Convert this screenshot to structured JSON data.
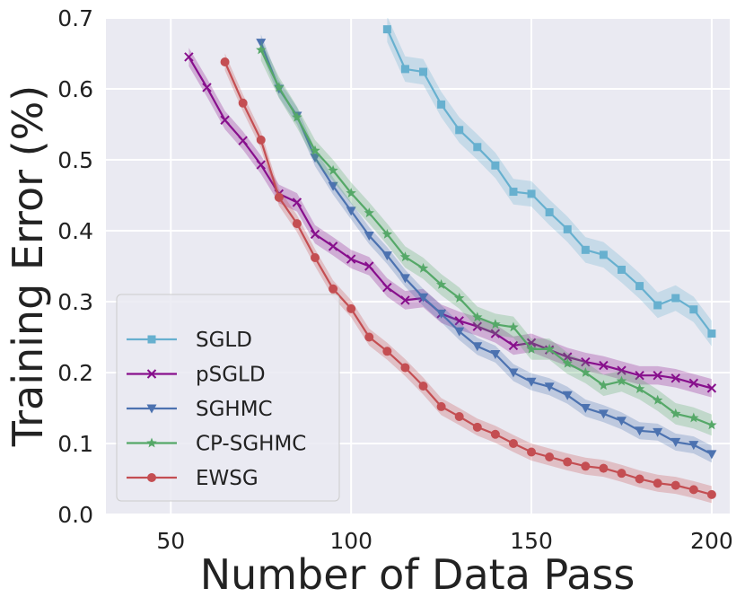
{
  "chart_data": {
    "type": "line",
    "xlabel": "Number of Data Pass",
    "ylabel": "Training Error (%)",
    "xlim": [
      32,
      205
    ],
    "ylim": [
      0.0,
      0.7
    ],
    "xticks": [
      50,
      100,
      150,
      200
    ],
    "yticks": [
      0.0,
      0.1,
      0.2,
      0.3,
      0.4,
      0.5,
      0.6,
      0.7
    ],
    "xtick_labels": [
      "50",
      "100",
      "150",
      "200"
    ],
    "ytick_labels": [
      "0.0",
      "0.1",
      "0.2",
      "0.3",
      "0.4",
      "0.5",
      "0.6",
      "0.7"
    ],
    "grid": true,
    "legend_position": "lower-left",
    "series": [
      {
        "name": "SGLD",
        "color": "#67b0cf",
        "marker": "square",
        "x": [
          110,
          115,
          120,
          125,
          130,
          135,
          140,
          145,
          150,
          155,
          160,
          165,
          170,
          175,
          180,
          185,
          190,
          195,
          200
        ],
        "y": [
          0.684,
          0.628,
          0.624,
          0.578,
          0.542,
          0.518,
          0.492,
          0.455,
          0.452,
          0.426,
          0.402,
          0.373,
          0.366,
          0.345,
          0.322,
          0.295,
          0.305,
          0.289,
          0.255
        ],
        "band": 0.018
      },
      {
        "name": "pSGLD",
        "color": "#870f8c",
        "marker": "x",
        "x": [
          55,
          60,
          65,
          70,
          75,
          80,
          85,
          90,
          95,
          100,
          105,
          110,
          115,
          120,
          125,
          130,
          135,
          140,
          145,
          150,
          155,
          160,
          165,
          170,
          175,
          180,
          185,
          190,
          195,
          200
        ],
        "y": [
          0.645,
          0.602,
          0.556,
          0.527,
          0.493,
          0.452,
          0.44,
          0.395,
          0.378,
          0.36,
          0.35,
          0.32,
          0.302,
          0.305,
          0.283,
          0.273,
          0.265,
          0.255,
          0.238,
          0.242,
          0.232,
          0.222,
          0.215,
          0.21,
          0.203,
          0.196,
          0.196,
          0.192,
          0.185,
          0.178
        ],
        "band": 0.013
      },
      {
        "name": "SGHMC",
        "color": "#4c72b0",
        "marker": "triangle-down",
        "x": [
          75,
          80,
          85,
          90,
          95,
          100,
          105,
          110,
          115,
          120,
          125,
          130,
          135,
          140,
          145,
          150,
          155,
          160,
          165,
          170,
          175,
          180,
          185,
          190,
          195,
          200
        ],
        "y": [
          0.665,
          0.6,
          0.562,
          0.503,
          0.463,
          0.428,
          0.393,
          0.365,
          0.333,
          0.306,
          0.283,
          0.258,
          0.237,
          0.226,
          0.2,
          0.187,
          0.18,
          0.168,
          0.15,
          0.142,
          0.132,
          0.118,
          0.116,
          0.102,
          0.098,
          0.085
        ],
        "band": 0.012
      },
      {
        "name": "CP-SGHMC",
        "color": "#55a868",
        "marker": "star",
        "x": [
          75,
          80,
          85,
          90,
          95,
          100,
          105,
          110,
          115,
          120,
          125,
          130,
          135,
          140,
          145,
          150,
          155,
          160,
          165,
          170,
          175,
          180,
          185,
          190,
          195,
          200
        ],
        "y": [
          0.655,
          0.602,
          0.56,
          0.513,
          0.485,
          0.453,
          0.425,
          0.395,
          0.363,
          0.347,
          0.324,
          0.305,
          0.278,
          0.268,
          0.264,
          0.233,
          0.233,
          0.213,
          0.2,
          0.182,
          0.188,
          0.177,
          0.161,
          0.142,
          0.136,
          0.126
        ],
        "band": 0.015
      },
      {
        "name": "EWSG",
        "color": "#c44e52",
        "marker": "circle",
        "x": [
          65,
          70,
          75,
          80,
          85,
          90,
          95,
          100,
          105,
          110,
          115,
          120,
          125,
          130,
          135,
          140,
          145,
          150,
          155,
          160,
          165,
          170,
          175,
          180,
          185,
          190,
          195,
          200
        ],
        "y": [
          0.638,
          0.58,
          0.528,
          0.447,
          0.41,
          0.362,
          0.318,
          0.29,
          0.25,
          0.23,
          0.207,
          0.181,
          0.152,
          0.138,
          0.123,
          0.113,
          0.1,
          0.088,
          0.081,
          0.074,
          0.068,
          0.065,
          0.058,
          0.05,
          0.044,
          0.041,
          0.035,
          0.028
        ],
        "band": 0.012
      }
    ]
  }
}
